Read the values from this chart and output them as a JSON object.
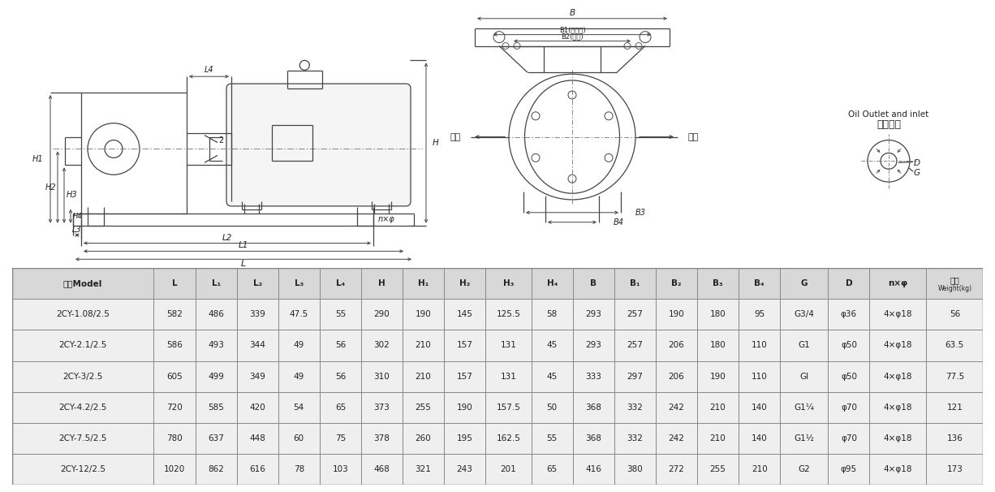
{
  "table_headers": [
    "型号Model",
    "L",
    "L₁",
    "L₂",
    "L₃",
    "L₄",
    "H",
    "H₁",
    "H₂",
    "H₃",
    "H₄",
    "B",
    "B₁",
    "B₂",
    "B₃",
    "B₄",
    "G",
    "D",
    "n×φ",
    "重量\nWeight(kg)"
  ],
  "table_data": [
    [
      "2CY-1.08/2.5",
      "582",
      "486",
      "339",
      "47.5",
      "55",
      "290",
      "190",
      "145",
      "125.5",
      "58",
      "293",
      "257",
      "190",
      "180",
      "95",
      "G3/4",
      "φ36",
      "4×φ18",
      "56"
    ],
    [
      "2CY-2.1/2.5",
      "586",
      "493",
      "344",
      "49",
      "56",
      "302",
      "210",
      "157",
      "131",
      "45",
      "293",
      "257",
      "206",
      "180",
      "110",
      "G1",
      "φ50",
      "4×φ18",
      "63.5"
    ],
    [
      "2CY-3/2.5",
      "605",
      "499",
      "349",
      "49",
      "56",
      "310",
      "210",
      "157",
      "131",
      "45",
      "333",
      "297",
      "206",
      "190",
      "110",
      "Gl",
      "φ50",
      "4×φ18",
      "77.5"
    ],
    [
      "2CY-4.2/2.5",
      "720",
      "585",
      "420",
      "54",
      "65",
      "373",
      "255",
      "190",
      "157.5",
      "50",
      "368",
      "332",
      "242",
      "210",
      "140",
      "G1¼",
      "φ70",
      "4×φ18",
      "121"
    ],
    [
      "2CY-7.5/2.5",
      "780",
      "637",
      "448",
      "60",
      "75",
      "378",
      "260",
      "195",
      "162.5",
      "55",
      "368",
      "332",
      "242",
      "210",
      "140",
      "G1½",
      "φ70",
      "4×φ18",
      "136"
    ],
    [
      "2CY-12/2.5",
      "1020",
      "862",
      "616",
      "78",
      "103",
      "468",
      "321",
      "243",
      "201",
      "65",
      "416",
      "380",
      "272",
      "255",
      "210",
      "G2",
      "φ95",
      "4×φ18",
      "173"
    ]
  ],
  "col_widths": [
    1.3,
    0.38,
    0.38,
    0.38,
    0.38,
    0.38,
    0.38,
    0.38,
    0.38,
    0.42,
    0.38,
    0.38,
    0.38,
    0.38,
    0.38,
    0.38,
    0.44,
    0.38,
    0.52,
    0.52
  ],
  "bg_color": "#ffffff",
  "line_color": "#444444",
  "text_color": "#222222",
  "table_header_bg": "#d8d8d8",
  "table_row_bg": "#efefef"
}
